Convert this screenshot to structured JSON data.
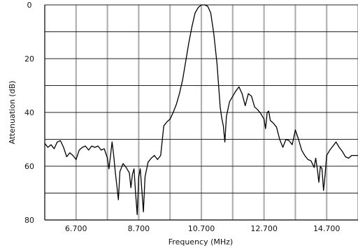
{
  "chart_data": {
    "type": "line",
    "title": "",
    "xlabel": "Frequency (MHz)",
    "ylabel": "Attenuation (dB)",
    "xlim": [
      5.7,
      15.7
    ],
    "ylim": [
      0,
      80
    ],
    "y_inverted": true,
    "grid": true,
    "legend": "none",
    "x_ticks": [
      {
        "value": 6.7,
        "label": "6.700"
      },
      {
        "value": 8.7,
        "label": "8.700"
      },
      {
        "value": 10.7,
        "label": "10.700"
      },
      {
        "value": 12.7,
        "label": "12.700"
      },
      {
        "value": 14.7,
        "label": "14.700"
      }
    ],
    "x_grid_minor": [
      5.7,
      6.7,
      7.7,
      8.7,
      9.7,
      10.7,
      11.7,
      12.7,
      13.7,
      14.7,
      15.7
    ],
    "y_ticks": [
      {
        "value": 0,
        "label": "0"
      },
      {
        "value": 20,
        "label": "20"
      },
      {
        "value": 40,
        "label": "40"
      },
      {
        "value": 60,
        "label": "60"
      },
      {
        "value": 80,
        "label": "80"
      }
    ],
    "y_grid": [
      0,
      10,
      20,
      30,
      40,
      50,
      60,
      70,
      80
    ],
    "colors": {
      "line": "#000000",
      "grid": "#b0b0b0",
      "axis": "#000000"
    },
    "series": [
      {
        "values": [
          [
            5.7,
            51.5
          ],
          [
            5.8,
            53
          ],
          [
            5.9,
            52
          ],
          [
            6.0,
            53.5
          ],
          [
            6.1,
            51
          ],
          [
            6.2,
            50.5
          ],
          [
            6.3,
            53
          ],
          [
            6.4,
            56.5
          ],
          [
            6.5,
            55
          ],
          [
            6.6,
            56
          ],
          [
            6.7,
            57.5
          ],
          [
            6.8,
            54
          ],
          [
            6.9,
            53
          ],
          [
            7.0,
            52.5
          ],
          [
            7.1,
            54
          ],
          [
            7.2,
            52.5
          ],
          [
            7.3,
            53
          ],
          [
            7.4,
            52.5
          ],
          [
            7.5,
            54
          ],
          [
            7.6,
            53.5
          ],
          [
            7.7,
            57
          ],
          [
            7.75,
            61
          ],
          [
            7.8,
            56
          ],
          [
            7.85,
            51
          ],
          [
            7.9,
            56
          ],
          [
            7.95,
            62
          ],
          [
            8.0,
            67
          ],
          [
            8.05,
            72.5
          ],
          [
            8.1,
            62
          ],
          [
            8.2,
            59
          ],
          [
            8.3,
            60.5
          ],
          [
            8.4,
            62.5
          ],
          [
            8.45,
            68
          ],
          [
            8.5,
            63
          ],
          [
            8.55,
            61
          ],
          [
            8.6,
            70
          ],
          [
            8.65,
            78
          ],
          [
            8.7,
            64
          ],
          [
            8.75,
            61
          ],
          [
            8.8,
            69
          ],
          [
            8.85,
            77
          ],
          [
            8.9,
            64
          ],
          [
            9.0,
            58.5
          ],
          [
            9.1,
            57
          ],
          [
            9.2,
            56
          ],
          [
            9.3,
            57.5
          ],
          [
            9.4,
            56
          ],
          [
            9.5,
            45
          ],
          [
            9.6,
            43.5
          ],
          [
            9.7,
            42.5
          ],
          [
            9.8,
            40
          ],
          [
            9.9,
            37
          ],
          [
            10.0,
            33
          ],
          [
            10.1,
            28
          ],
          [
            10.2,
            21
          ],
          [
            10.3,
            14
          ],
          [
            10.4,
            8
          ],
          [
            10.5,
            3
          ],
          [
            10.6,
            1
          ],
          [
            10.7,
            0
          ],
          [
            10.8,
            0
          ],
          [
            10.9,
            0.5
          ],
          [
            11.0,
            3
          ],
          [
            11.1,
            11
          ],
          [
            11.2,
            22
          ],
          [
            11.3,
            38
          ],
          [
            11.35,
            42
          ],
          [
            11.4,
            45
          ],
          [
            11.45,
            51
          ],
          [
            11.5,
            41.5
          ],
          [
            11.6,
            36
          ],
          [
            11.7,
            34
          ],
          [
            11.8,
            32
          ],
          [
            11.9,
            30.5
          ],
          [
            12.0,
            33
          ],
          [
            12.1,
            37.5
          ],
          [
            12.2,
            33
          ],
          [
            12.3,
            34
          ],
          [
            12.4,
            38
          ],
          [
            12.5,
            39
          ],
          [
            12.6,
            40.5
          ],
          [
            12.7,
            42.5
          ],
          [
            12.75,
            46
          ],
          [
            12.8,
            40
          ],
          [
            12.85,
            39.5
          ],
          [
            12.9,
            43
          ],
          [
            13.0,
            44
          ],
          [
            13.1,
            45.5
          ],
          [
            13.2,
            50
          ],
          [
            13.3,
            53
          ],
          [
            13.4,
            50
          ],
          [
            13.5,
            50.5
          ],
          [
            13.6,
            52
          ],
          [
            13.7,
            46.5
          ],
          [
            13.8,
            50
          ],
          [
            13.9,
            54
          ],
          [
            14.0,
            56
          ],
          [
            14.1,
            57.5
          ],
          [
            14.2,
            58
          ],
          [
            14.3,
            60.5
          ],
          [
            14.35,
            57
          ],
          [
            14.4,
            61
          ],
          [
            14.45,
            66
          ],
          [
            14.5,
            60
          ],
          [
            14.55,
            61
          ],
          [
            14.6,
            69
          ],
          [
            14.65,
            63
          ],
          [
            14.7,
            56
          ],
          [
            14.8,
            54
          ],
          [
            14.9,
            52.5
          ],
          [
            15.0,
            51
          ],
          [
            15.1,
            53
          ],
          [
            15.2,
            54.5
          ],
          [
            15.3,
            56.5
          ],
          [
            15.4,
            57
          ],
          [
            15.5,
            56
          ],
          [
            15.6,
            56
          ],
          [
            15.7,
            56
          ]
        ]
      }
    ]
  }
}
